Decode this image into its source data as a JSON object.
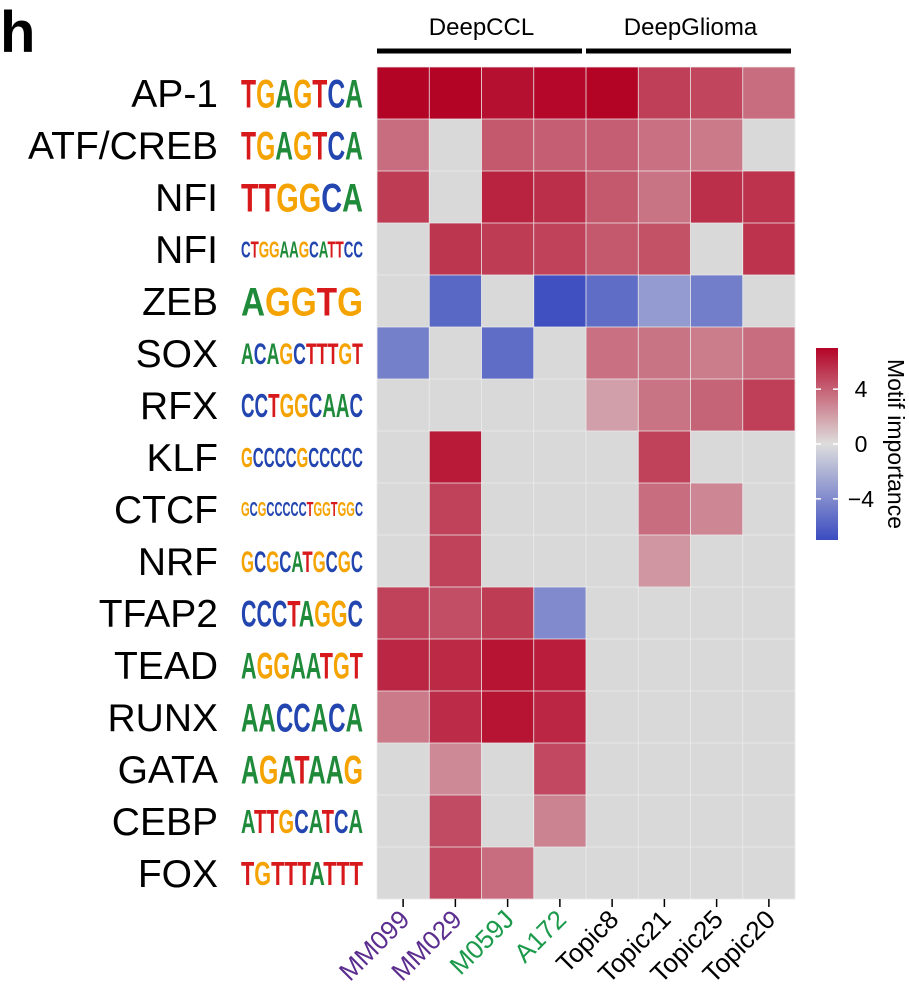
{
  "panel_label": "h",
  "chart_data": {
    "type": "heatmap",
    "rows": [
      "AP-1",
      "ATF/CREB",
      "NFI",
      "NFI",
      "ZEB",
      "SOX",
      "RFX",
      "KLF",
      "CTCF",
      "NRF",
      "TFAP2",
      "TEAD",
      "RUNX",
      "GATA",
      "CEBP",
      "FOX"
    ],
    "motif_logos": [
      "TGAGTCA",
      "TGA GTCA",
      "TTGGCA",
      "CTGG AAGCATTCC",
      "AGGTG",
      "ACAG CTT TGT",
      "CC TGG CAAC",
      "GCCCCGCCCCC",
      "GCGCCCCCTGGTGGC",
      "GCGCATGCGC",
      "CCCT AGGC",
      "AGGAATGT",
      "AACCACA",
      "AGATAAG",
      "ATTGCATCA",
      "TGTTTATTT"
    ],
    "columns": [
      {
        "label": "MM099",
        "color": "#5b2d8e"
      },
      {
        "label": "MM029",
        "color": "#5b2d8e"
      },
      {
        "label": "M059J",
        "color": "#1b9a4b"
      },
      {
        "label": "A172",
        "color": "#1b9a4b"
      },
      {
        "label": "Topic8",
        "color": "#000000"
      },
      {
        "label": "Topic21",
        "color": "#000000"
      },
      {
        "label": "Topic25",
        "color": "#000000"
      },
      {
        "label": "Topic20",
        "color": "#000000"
      }
    ],
    "groups": [
      {
        "label": "DeepCCL",
        "from": 0,
        "to": 3
      },
      {
        "label": "DeepGlioma",
        "from": 4,
        "to": 7
      }
    ],
    "values": [
      [
        7.0,
        7.0,
        6.6,
        6.9,
        7.1,
        5.1,
        4.9,
        3.6
      ],
      [
        3.6,
        0,
        4.3,
        4.1,
        4.1,
        3.5,
        3.2,
        0
      ],
      [
        5.2,
        0,
        6.0,
        5.6,
        4.3,
        3.4,
        5.6,
        5.5
      ],
      [
        0,
        5.4,
        5.2,
        5.0,
        4.3,
        4.5,
        0,
        5.5
      ],
      [
        0,
        -5.7,
        0,
        -6.8,
        -5.4,
        -3.2,
        -4.6,
        0
      ],
      [
        -4.5,
        0,
        -5.4,
        0,
        3.5,
        3.4,
        3.1,
        3.6
      ],
      [
        0,
        0,
        0,
        0,
        2.0,
        3.4,
        3.9,
        5.1
      ],
      [
        0,
        6.3,
        0,
        0,
        0,
        5.0,
        0,
        0
      ],
      [
        0,
        5.0,
        0,
        0,
        0,
        3.6,
        2.8,
        0
      ],
      [
        0,
        5.0,
        0,
        0,
        0,
        2.3,
        0,
        0
      ],
      [
        5.0,
        4.6,
        5.2,
        -4.0,
        0,
        0,
        0,
        0
      ],
      [
        5.9,
        5.8,
        6.5,
        6.2,
        0,
        0,
        0,
        0
      ],
      [
        3.2,
        5.7,
        6.5,
        5.9,
        0,
        0,
        0,
        0
      ],
      [
        0,
        2.7,
        0,
        4.8,
        0,
        0,
        0,
        0
      ],
      [
        0,
        4.7,
        0,
        2.9,
        0,
        0,
        0,
        0
      ],
      [
        0,
        4.8,
        3.6,
        0,
        0,
        0,
        0,
        0
      ]
    ],
    "missing_color": "#d9d9d9",
    "colorbar": {
      "title": "Motif importance",
      "range": [
        -7,
        7
      ],
      "ticks": [
        4,
        0,
        -4
      ],
      "tick_labels": [
        "4",
        "0",
        "−4"
      ],
      "low_color": "#3b4cc0",
      "mid_color": "#dddddd",
      "high_color": "#b40426"
    }
  }
}
